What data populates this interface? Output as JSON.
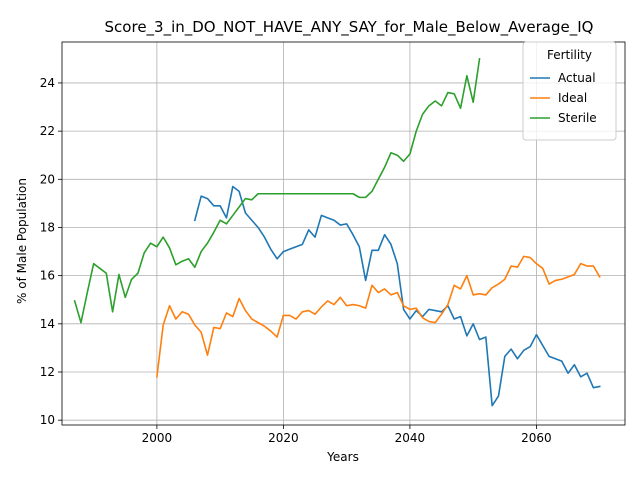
{
  "chart_data": {
    "type": "line",
    "title": "Score_3_in_DO_NOT_HAVE_ANY_SAY_for_Male_Below_Average_IQ",
    "xlabel": "Years",
    "ylabel": "% of Male Population",
    "xlim": [
      1985,
      2074
    ],
    "ylim": [
      9.8,
      25.7
    ],
    "xticks": [
      2000,
      2020,
      2040,
      2060
    ],
    "yticks": [
      10,
      12,
      14,
      16,
      18,
      20,
      22,
      24
    ],
    "grid": true,
    "legend": {
      "title": "Fertility",
      "placement": "top-right"
    },
    "series": [
      {
        "name": "Actual",
        "color": "#1f77b4",
        "x": [
          2006,
          2007,
          2008,
          2009,
          2010,
          2011,
          2012,
          2013,
          2014,
          2015,
          2016,
          2017,
          2018,
          2019,
          2020,
          2021,
          2022,
          2023,
          2024,
          2025,
          2026,
          2027,
          2028,
          2029,
          2030,
          2031,
          2032,
          2033,
          2034,
          2035,
          2036,
          2037,
          2038,
          2039,
          2040,
          2041,
          2042,
          2043,
          2044,
          2045,
          2046,
          2047,
          2048,
          2049,
          2050,
          2051,
          2052,
          2053,
          2054,
          2055,
          2056,
          2057,
          2058,
          2059,
          2060,
          2061,
          2062,
          2063,
          2064,
          2065,
          2066,
          2067,
          2068,
          2069,
          2070
        ],
        "y": [
          18.3,
          19.3,
          19.2,
          18.9,
          18.9,
          18.4,
          19.7,
          19.5,
          18.6,
          18.3,
          18.0,
          17.6,
          17.1,
          16.7,
          17.0,
          17.1,
          17.2,
          17.3,
          17.9,
          17.6,
          18.5,
          18.4,
          18.3,
          18.1,
          18.15,
          17.7,
          17.2,
          15.8,
          17.05,
          17.05,
          17.7,
          17.3,
          16.5,
          14.6,
          14.2,
          14.55,
          14.3,
          14.6,
          14.55,
          14.5,
          14.75,
          14.2,
          14.3,
          13.5,
          14.0,
          13.35,
          13.45,
          10.6,
          11.0,
          12.65,
          12.95,
          12.55,
          12.9,
          13.05,
          13.55,
          13.1,
          12.65,
          12.55,
          12.45,
          11.95,
          12.3,
          11.8,
          11.95,
          11.35,
          11.4
        ]
      },
      {
        "name": "Ideal",
        "color": "#ff7f0e",
        "x": [
          2000,
          2001,
          2002,
          2003,
          2004,
          2005,
          2006,
          2007,
          2008,
          2009,
          2010,
          2011,
          2012,
          2013,
          2014,
          2015,
          2016,
          2017,
          2018,
          2019,
          2020,
          2021,
          2022,
          2023,
          2024,
          2025,
          2026,
          2027,
          2028,
          2029,
          2030,
          2031,
          2032,
          2033,
          2034,
          2035,
          2036,
          2037,
          2038,
          2039,
          2040,
          2041,
          2042,
          2043,
          2044,
          2045,
          2046,
          2047,
          2048,
          2049,
          2050,
          2051,
          2052,
          2053,
          2054,
          2055,
          2056,
          2057,
          2058,
          2059,
          2060,
          2061,
          2062,
          2063,
          2064,
          2065,
          2066,
          2067,
          2068,
          2069,
          2070
        ],
        "y": [
          11.8,
          13.95,
          14.75,
          14.2,
          14.5,
          14.4,
          13.95,
          13.65,
          12.7,
          13.85,
          13.8,
          14.45,
          14.3,
          15.05,
          14.55,
          14.2,
          14.05,
          13.9,
          13.7,
          13.45,
          14.35,
          14.35,
          14.2,
          14.5,
          14.55,
          14.4,
          14.7,
          14.95,
          14.8,
          15.1,
          14.75,
          14.8,
          14.75,
          14.65,
          15.6,
          15.3,
          15.45,
          15.2,
          15.3,
          14.75,
          14.6,
          14.65,
          14.25,
          14.1,
          14.05,
          14.4,
          14.8,
          15.6,
          15.45,
          16.0,
          15.2,
          15.25,
          15.2,
          15.5,
          15.65,
          15.85,
          16.4,
          16.35,
          16.8,
          16.75,
          16.5,
          16.3,
          15.65,
          15.8,
          15.85,
          15.95,
          16.05,
          16.5,
          16.4,
          16.4,
          15.95
        ]
      },
      {
        "name": "Sterile",
        "color": "#2ca02c",
        "x": [
          1987,
          1988,
          1989,
          1990,
          1991,
          1992,
          1993,
          1994,
          1995,
          1996,
          1997,
          1998,
          1999,
          2000,
          2001,
          2002,
          2003,
          2004,
          2005,
          2006,
          2007,
          2008,
          2009,
          2010,
          2011,
          2012,
          2013,
          2014,
          2015,
          2016,
          2017,
          2018,
          2019,
          2020,
          2021,
          2022,
          2023,
          2024,
          2025,
          2026,
          2027,
          2028,
          2029,
          2030,
          2031,
          2032,
          2033,
          2034,
          2035,
          2036,
          2037,
          2038,
          2039,
          2040,
          2041,
          2042,
          2043,
          2044,
          2045,
          2046,
          2047,
          2048,
          2049,
          2050,
          2051
        ],
        "y": [
          14.95,
          14.05,
          15.3,
          16.5,
          16.3,
          16.1,
          14.5,
          16.05,
          15.1,
          15.85,
          16.1,
          16.95,
          17.35,
          17.2,
          17.6,
          17.15,
          16.45,
          16.6,
          16.7,
          16.35,
          17.0,
          17.35,
          17.8,
          18.3,
          18.15,
          18.5,
          18.85,
          19.2,
          19.15,
          19.4,
          19.4,
          19.4,
          19.4,
          19.4,
          19.4,
          19.4,
          19.4,
          19.4,
          19.4,
          19.4,
          19.4,
          19.4,
          19.4,
          19.4,
          19.4,
          19.25,
          19.25,
          19.5,
          20.0,
          20.5,
          21.1,
          21.0,
          20.75,
          21.05,
          22.0,
          22.7,
          23.05,
          23.25,
          23.05,
          23.6,
          23.55,
          22.95,
          24.3,
          23.2,
          25.0
        ]
      }
    ]
  }
}
